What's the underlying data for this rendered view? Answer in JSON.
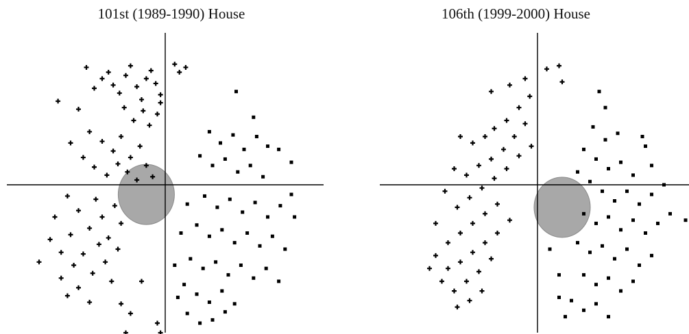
{
  "chart_data": [
    {
      "type": "scatter",
      "title": "101st (1989-1990) House",
      "xlabel": "",
      "ylabel": "",
      "xlim": [
        -1,
        1
      ],
      "ylim": [
        -0.93,
        0.82
      ],
      "grid": false,
      "series": [
        {
          "marker": "plus",
          "color": "#000000",
          "points": [
            [
              -0.5,
              0.73
            ],
            [
              -0.45,
              0.6
            ],
            [
              -0.4,
              0.66
            ],
            [
              -0.36,
              0.7
            ],
            [
              -0.33,
              0.62
            ],
            [
              -0.29,
              0.57
            ],
            [
              -0.25,
              0.68
            ],
            [
              -0.22,
              0.74
            ],
            [
              -0.18,
              0.61
            ],
            [
              -0.15,
              0.53
            ],
            [
              -0.12,
              0.66
            ],
            [
              -0.09,
              0.71
            ],
            [
              -0.06,
              0.63
            ],
            [
              -0.03,
              0.56
            ],
            [
              0.06,
              0.75
            ],
            [
              0.09,
              0.7
            ],
            [
              0.13,
              0.73
            ],
            [
              -0.26,
              0.48
            ],
            [
              -0.2,
              0.4
            ],
            [
              -0.14,
              0.46
            ],
            [
              -0.1,
              0.37
            ],
            [
              -0.05,
              0.44
            ],
            [
              -0.03,
              0.51
            ],
            [
              -0.48,
              0.33
            ],
            [
              -0.4,
              0.27
            ],
            [
              -0.33,
              0.21
            ],
            [
              -0.28,
              0.3
            ],
            [
              -0.22,
              0.17
            ],
            [
              -0.16,
              0.24
            ],
            [
              -0.52,
              0.17
            ],
            [
              -0.45,
              0.11
            ],
            [
              -0.37,
              0.06
            ],
            [
              -0.3,
              0.13
            ],
            [
              -0.24,
              0.08
            ],
            [
              -0.18,
              0.03
            ],
            [
              -0.12,
              0.12
            ],
            [
              -0.08,
              0.05
            ],
            [
              -0.6,
              0.26
            ],
            [
              -0.68,
              0.52
            ],
            [
              -0.55,
              0.47
            ],
            [
              -0.62,
              -0.07
            ],
            [
              -0.55,
              -0.16
            ],
            [
              -0.48,
              -0.27
            ],
            [
              -0.44,
              -0.09
            ],
            [
              -0.4,
              -0.2
            ],
            [
              -0.36,
              -0.33
            ],
            [
              -0.32,
              -0.13
            ],
            [
              -0.28,
              -0.24
            ],
            [
              -0.7,
              -0.2
            ],
            [
              -0.73,
              -0.34
            ],
            [
              -0.66,
              -0.42
            ],
            [
              -0.6,
              -0.31
            ],
            [
              -0.58,
              -0.5
            ],
            [
              -0.52,
              -0.43
            ],
            [
              -0.46,
              -0.55
            ],
            [
              -0.42,
              -0.37
            ],
            [
              -0.38,
              -0.48
            ],
            [
              -0.34,
              -0.6
            ],
            [
              -0.3,
              -0.4
            ],
            [
              -0.8,
              -0.48
            ],
            [
              -0.66,
              -0.58
            ],
            [
              -0.62,
              -0.69
            ],
            [
              -0.55,
              -0.64
            ],
            [
              -0.48,
              -0.73
            ],
            [
              -0.28,
              -0.74
            ],
            [
              -0.22,
              -0.8
            ],
            [
              -0.25,
              -0.92
            ],
            [
              -0.05,
              -0.86
            ],
            [
              -0.03,
              -0.92
            ],
            [
              -0.15,
              -0.6
            ]
          ]
        },
        {
          "marker": "square",
          "color": "#000000",
          "points": [
            [
              0.45,
              0.58
            ],
            [
              0.56,
              0.42
            ],
            [
              0.28,
              0.33
            ],
            [
              0.35,
              0.26
            ],
            [
              0.43,
              0.31
            ],
            [
              0.5,
              0.22
            ],
            [
              0.58,
              0.3
            ],
            [
              0.65,
              0.24
            ],
            [
              0.22,
              0.18
            ],
            [
              0.3,
              0.12
            ],
            [
              0.38,
              0.16
            ],
            [
              0.46,
              0.08
            ],
            [
              0.54,
              0.12
            ],
            [
              0.62,
              0.05
            ],
            [
              0.72,
              0.22
            ],
            [
              0.8,
              0.14
            ],
            [
              0.25,
              -0.07
            ],
            [
              0.33,
              -0.14
            ],
            [
              0.41,
              -0.09
            ],
            [
              0.49,
              -0.17
            ],
            [
              0.57,
              -0.11
            ],
            [
              0.65,
              -0.2
            ],
            [
              0.73,
              -0.13
            ],
            [
              0.2,
              -0.25
            ],
            [
              0.28,
              -0.32
            ],
            [
              0.36,
              -0.28
            ],
            [
              0.44,
              -0.36
            ],
            [
              0.52,
              -0.3
            ],
            [
              0.6,
              -0.38
            ],
            [
              0.68,
              -0.32
            ],
            [
              0.76,
              -0.4
            ],
            [
              0.16,
              -0.46
            ],
            [
              0.24,
              -0.52
            ],
            [
              0.32,
              -0.48
            ],
            [
              0.4,
              -0.56
            ],
            [
              0.48,
              -0.5
            ],
            [
              0.56,
              -0.58
            ],
            [
              0.64,
              -0.52
            ],
            [
              0.72,
              -0.6
            ],
            [
              0.8,
              -0.06
            ],
            [
              0.82,
              -0.2
            ],
            [
              0.12,
              -0.62
            ],
            [
              0.2,
              -0.68
            ],
            [
              0.28,
              -0.73
            ],
            [
              0.36,
              -0.66
            ],
            [
              0.44,
              -0.74
            ],
            [
              0.14,
              -0.8
            ],
            [
              0.22,
              -0.86
            ],
            [
              0.3,
              -0.84
            ],
            [
              0.38,
              -0.79
            ],
            [
              0.1,
              -0.3
            ],
            [
              0.14,
              -0.12
            ],
            [
              0.06,
              -0.5
            ],
            [
              0.08,
              -0.7
            ]
          ]
        },
        {
          "marker": "dense-cluster",
          "color": "#a8a8a8",
          "points": [
            [
              -0.12,
              -0.06
            ]
          ]
        }
      ]
    },
    {
      "type": "scatter",
      "title": "106th (1999-2000) House",
      "xlabel": "",
      "ylabel": "",
      "xlim": [
        -1,
        1
      ],
      "ylim": [
        -0.93,
        0.82
      ],
      "grid": false,
      "series": [
        {
          "marker": "plus",
          "color": "#000000",
          "points": [
            [
              -0.18,
              0.62
            ],
            [
              -0.08,
              0.66
            ],
            [
              -0.05,
              0.55
            ],
            [
              -0.12,
              0.48
            ],
            [
              -0.2,
              0.4
            ],
            [
              -0.28,
              0.35
            ],
            [
              -0.34,
              0.3
            ],
            [
              -0.42,
              0.26
            ],
            [
              -0.5,
              0.3
            ],
            [
              -0.08,
              0.38
            ],
            [
              -0.15,
              0.3
            ],
            [
              -0.22,
              0.22
            ],
            [
              -0.3,
              0.16
            ],
            [
              -0.38,
              0.12
            ],
            [
              -0.46,
              0.06
            ],
            [
              -0.54,
              0.1
            ],
            [
              -0.04,
              0.24
            ],
            [
              -0.12,
              0.18
            ],
            [
              -0.2,
              0.1
            ],
            [
              -0.28,
              0.04
            ],
            [
              -0.36,
              -0.02
            ],
            [
              -0.44,
              -0.08
            ],
            [
              -0.52,
              -0.14
            ],
            [
              -0.6,
              -0.04
            ],
            [
              -0.26,
              -0.12
            ],
            [
              -0.34,
              -0.18
            ],
            [
              -0.42,
              -0.24
            ],
            [
              -0.5,
              -0.3
            ],
            [
              -0.58,
              -0.36
            ],
            [
              -0.66,
              -0.24
            ],
            [
              -0.18,
              -0.22
            ],
            [
              -0.26,
              -0.3
            ],
            [
              -0.34,
              -0.36
            ],
            [
              -0.42,
              -0.42
            ],
            [
              -0.5,
              -0.48
            ],
            [
              -0.58,
              -0.52
            ],
            [
              -0.66,
              -0.44
            ],
            [
              -0.3,
              -0.46
            ],
            [
              -0.38,
              -0.54
            ],
            [
              -0.46,
              -0.6
            ],
            [
              -0.54,
              -0.66
            ],
            [
              -0.62,
              -0.6
            ],
            [
              -0.7,
              -0.52
            ],
            [
              -0.36,
              -0.66
            ],
            [
              -0.44,
              -0.72
            ],
            [
              -0.52,
              -0.76
            ],
            [
              0.06,
              0.72
            ],
            [
              0.14,
              0.74
            ],
            [
              0.16,
              0.64
            ],
            [
              -0.3,
              0.58
            ]
          ]
        },
        {
          "marker": "square",
          "color": "#000000",
          "points": [
            [
              0.4,
              0.58
            ],
            [
              0.44,
              0.48
            ],
            [
              0.36,
              0.36
            ],
            [
              0.44,
              0.28
            ],
            [
              0.52,
              0.32
            ],
            [
              0.3,
              0.22
            ],
            [
              0.38,
              0.16
            ],
            [
              0.46,
              0.1
            ],
            [
              0.54,
              0.14
            ],
            [
              0.62,
              0.06
            ],
            [
              0.68,
              0.3
            ],
            [
              0.26,
              0.08
            ],
            [
              0.34,
              0.02
            ],
            [
              0.42,
              -0.04
            ],
            [
              0.5,
              -0.1
            ],
            [
              0.58,
              -0.04
            ],
            [
              0.66,
              -0.12
            ],
            [
              0.74,
              -0.06
            ],
            [
              0.82,
              0.0
            ],
            [
              0.3,
              -0.18
            ],
            [
              0.38,
              -0.24
            ],
            [
              0.46,
              -0.2
            ],
            [
              0.54,
              -0.28
            ],
            [
              0.62,
              -0.22
            ],
            [
              0.7,
              -0.3
            ],
            [
              0.78,
              -0.24
            ],
            [
              0.86,
              -0.18
            ],
            [
              0.26,
              -0.36
            ],
            [
              0.34,
              -0.42
            ],
            [
              0.42,
              -0.38
            ],
            [
              0.5,
              -0.46
            ],
            [
              0.58,
              -0.4
            ],
            [
              0.66,
              -0.5
            ],
            [
              0.74,
              -0.44
            ],
            [
              0.3,
              -0.56
            ],
            [
              0.38,
              -0.62
            ],
            [
              0.46,
              -0.58
            ],
            [
              0.54,
              -0.66
            ],
            [
              0.62,
              -0.6
            ],
            [
              0.22,
              -0.72
            ],
            [
              0.3,
              -0.78
            ],
            [
              0.38,
              -0.74
            ],
            [
              0.46,
              -0.82
            ],
            [
              0.14,
              -0.7
            ],
            [
              0.18,
              -0.82
            ],
            [
              0.96,
              -0.22
            ],
            [
              0.7,
              0.24
            ],
            [
              0.74,
              0.12
            ],
            [
              0.08,
              -0.4
            ],
            [
              0.14,
              -0.56
            ]
          ]
        },
        {
          "marker": "dense-cluster",
          "color": "#a8a8a8",
          "points": [
            [
              0.16,
              -0.14
            ]
          ]
        }
      ]
    }
  ]
}
